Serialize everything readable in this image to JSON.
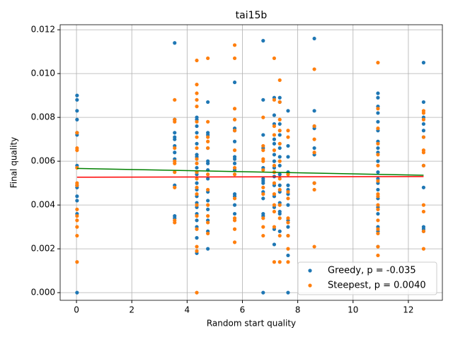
{
  "chart_data": {
    "type": "scatter",
    "title": "tai15b",
    "x_label": "Random start quality",
    "y_label": "Final quality",
    "xlim": [
      -0.59,
      13.23
    ],
    "ylim": [
      -0.00035,
      0.01223
    ],
    "xticks": [
      0,
      2,
      4,
      6,
      8,
      10,
      12
    ],
    "yticks": [
      {
        "value": 0,
        "label": "0.000"
      },
      {
        "value": 0.002,
        "label": "0.002"
      },
      {
        "value": 0.004,
        "label": "0.004"
      },
      {
        "value": 0.006,
        "label": "0.006"
      },
      {
        "value": 0.008,
        "label": "0.008"
      },
      {
        "value": 0.01,
        "label": "0.010"
      },
      {
        "value": 0.012,
        "label": "0.012"
      }
    ],
    "grid": true,
    "legend": "lower right",
    "series": [
      {
        "name": "Greedy, p = -0.035",
        "color": "#1f77b4",
        "x": [
          0.02,
          0.02,
          0.02,
          0.02,
          0.02,
          0.02,
          0.02,
          0.02,
          0.02,
          0.02,
          0.02,
          0.02,
          0.02,
          3.55,
          3.55,
          3.55,
          3.55,
          3.55,
          3.55,
          3.55,
          3.55,
          3.55,
          3.55,
          3.55,
          4.35,
          4.35,
          4.35,
          4.35,
          4.35,
          4.35,
          4.35,
          4.35,
          4.35,
          4.35,
          4.35,
          4.35,
          4.35,
          4.35,
          4.35,
          4.35,
          4.35,
          4.35,
          4.35,
          4.75,
          4.75,
          4.75,
          4.75,
          4.75,
          4.75,
          4.75,
          4.75,
          4.75,
          4.75,
          4.75,
          4.75,
          4.75,
          4.75,
          5.72,
          5.72,
          5.72,
          5.72,
          5.72,
          5.72,
          5.72,
          5.72,
          5.72,
          5.72,
          5.72,
          5.72,
          6.75,
          6.75,
          6.75,
          6.75,
          6.75,
          6.75,
          6.75,
          6.75,
          6.75,
          6.75,
          6.75,
          6.75,
          6.75,
          7.15,
          7.15,
          7.15,
          7.15,
          7.15,
          7.15,
          7.15,
          7.15,
          7.15,
          7.15,
          7.15,
          7.15,
          7.15,
          7.15,
          7.35,
          7.35,
          7.35,
          7.35,
          7.35,
          7.35,
          7.35,
          7.35,
          7.35,
          7.35,
          7.35,
          7.35,
          7.35,
          7.35,
          7.65,
          7.65,
          7.65,
          7.65,
          7.65,
          7.65,
          7.65,
          7.65,
          7.65,
          7.65,
          7.65,
          7.65,
          7.65,
          8.6,
          8.6,
          8.6,
          8.6,
          8.6,
          8.6,
          8.6,
          10.9,
          10.9,
          10.9,
          10.9,
          10.9,
          10.9,
          10.9,
          10.9,
          10.9,
          10.9,
          10.9,
          10.9,
          10.9,
          10.9,
          10.9,
          10.9,
          10.9,
          10.9,
          10.9,
          10.9,
          12.55,
          12.55,
          12.55,
          12.55,
          12.55,
          12.55,
          12.55,
          12.55,
          12.55,
          12.55,
          12.55
        ],
        "y": [
          0.009,
          0.0088,
          0.0083,
          0.0079,
          0.0073,
          0.0072,
          0.0058,
          0.0049,
          0.0048,
          0.0044,
          0.0042,
          0.0036,
          0,
          0.0114,
          0.0079,
          0.0073,
          0.0071,
          0.007,
          0.0067,
          0.0064,
          0.0061,
          0.0049,
          0.0035,
          0.0034,
          0.008,
          0.0079,
          0.0076,
          0.0073,
          0.0068,
          0.0063,
          0.0062,
          0.0057,
          0.0054,
          0.005,
          0.0047,
          0.0044,
          0.0041,
          0.0039,
          0.0036,
          0.0033,
          0.003,
          0.0025,
          0.0018,
          0.0087,
          0.0073,
          0.0072,
          0.0066,
          0.006,
          0.0059,
          0.0056,
          0.0052,
          0.0046,
          0.0042,
          0.0038,
          0.0033,
          0.0028,
          0.002,
          0.0096,
          0.0075,
          0.0074,
          0.0069,
          0.0062,
          0.0061,
          0.0059,
          0.0056,
          0.0045,
          0.0044,
          0.004,
          0.0036,
          0.0115,
          0.0088,
          0.0072,
          0.0066,
          0.0057,
          0.0052,
          0.0051,
          0.005,
          0.0046,
          0.0043,
          0.0036,
          0.0035,
          0,
          0.0089,
          0.0081,
          0.0077,
          0.007,
          0.0068,
          0.0063,
          0.006,
          0.0057,
          0.0053,
          0.0049,
          0.0044,
          0.0039,
          0.0029,
          0.0022,
          0.0089,
          0.0087,
          0.0077,
          0.0072,
          0.0066,
          0.0062,
          0.0058,
          0.0054,
          0.0049,
          0.0046,
          0.0041,
          0.0037,
          0.0036,
          0.0028,
          0.0083,
          0.0067,
          0.0062,
          0.0055,
          0.0049,
          0.0047,
          0.0045,
          0.004,
          0.0033,
          0.003,
          0.0026,
          0.0017,
          0,
          0.0116,
          0.0083,
          0.0076,
          0.0075,
          0.0066,
          0.0063,
          0.005,
          0.0091,
          0.0089,
          0.0085,
          0.0082,
          0.0078,
          0.0074,
          0.0069,
          0.0066,
          0.0064,
          0.006,
          0.0055,
          0.0052,
          0.005,
          0.0047,
          0.0043,
          0.0039,
          0.0036,
          0.003,
          0.0028,
          0.0021,
          0.0105,
          0.0087,
          0.008,
          0.0077,
          0.0074,
          0.0071,
          0.0058,
          0.0048,
          0.003,
          0.0029,
          0.0028
        ]
      },
      {
        "name": "Steepest, p = 0.0040",
        "color": "#ff7f0e",
        "x": [
          0.02,
          0.02,
          0.02,
          0.02,
          0.02,
          0.02,
          0.02,
          0.02,
          0.02,
          0.02,
          0.02,
          0.02,
          3.55,
          3.55,
          3.55,
          3.55,
          3.55,
          3.55,
          3.55,
          3.55,
          3.55,
          3.55,
          4.35,
          4.35,
          4.35,
          4.35,
          4.35,
          4.35,
          4.35,
          4.35,
          4.35,
          4.35,
          4.35,
          4.35,
          4.35,
          4.35,
          4.35,
          4.35,
          4.35,
          4.35,
          4.35,
          4.35,
          4.75,
          4.75,
          4.75,
          4.75,
          4.75,
          4.75,
          4.75,
          4.75,
          4.75,
          4.75,
          4.75,
          5.72,
          5.72,
          5.72,
          5.72,
          5.72,
          5.72,
          5.72,
          5.72,
          5.72,
          5.72,
          5.72,
          5.72,
          5.72,
          6.75,
          6.75,
          6.75,
          6.75,
          6.75,
          6.75,
          6.75,
          6.75,
          6.75,
          6.75,
          6.75,
          7.15,
          7.15,
          7.15,
          7.15,
          7.15,
          7.15,
          7.15,
          7.15,
          7.15,
          7.15,
          7.15,
          7.15,
          7.15,
          7.35,
          7.35,
          7.35,
          7.35,
          7.35,
          7.35,
          7.35,
          7.35,
          7.35,
          7.35,
          7.35,
          7.35,
          7.65,
          7.65,
          7.65,
          7.65,
          7.65,
          7.65,
          7.65,
          7.65,
          7.65,
          7.65,
          8.6,
          8.6,
          8.6,
          8.6,
          8.6,
          8.6,
          8.6,
          10.9,
          10.9,
          10.9,
          10.9,
          10.9,
          10.9,
          10.9,
          10.9,
          10.9,
          10.9,
          10.9,
          10.9,
          10.9,
          10.9,
          10.9,
          10.9,
          12.55,
          12.55,
          12.55,
          12.55,
          12.55,
          12.55,
          12.55,
          12.55,
          12.55,
          12.55,
          12.55
        ],
        "y": [
          0.0073,
          0.0066,
          0.0065,
          0.0057,
          0.005,
          0.0049,
          0.0038,
          0.0035,
          0.0033,
          0.003,
          0.0026,
          0.0014,
          0.0088,
          0.0079,
          0.0078,
          0.0066,
          0.006,
          0.0059,
          0.0055,
          0.0048,
          0.0033,
          0.0032,
          0.0106,
          0.0095,
          0.0091,
          0.0088,
          0.0085,
          0.0078,
          0.0071,
          0.0066,
          0.0061,
          0.0059,
          0.0055,
          0.0052,
          0.0048,
          0.0045,
          0.004,
          0.0035,
          0.0029,
          0.0021,
          0.0019,
          0,
          0.0107,
          0.0078,
          0.0071,
          0.0069,
          0.0066,
          0.0054,
          0.0047,
          0.004,
          0.0035,
          0.0032,
          0.0027,
          0.0113,
          0.0107,
          0.0084,
          0.0079,
          0.0074,
          0.0065,
          0.0057,
          0.0054,
          0.0043,
          0.0034,
          0.0033,
          0.0029,
          0.0023,
          0.008,
          0.0067,
          0.0065,
          0.0061,
          0.006,
          0.0056,
          0.0048,
          0.0045,
          0.0034,
          0.003,
          0.0026,
          0.0107,
          0.0088,
          0.0076,
          0.0072,
          0.0065,
          0.0058,
          0.0055,
          0.005,
          0.0045,
          0.004,
          0.0037,
          0.003,
          0.0014,
          0.0097,
          0.0087,
          0.0079,
          0.0074,
          0.0068,
          0.006,
          0.0052,
          0.0047,
          0.004,
          0.0034,
          0.0026,
          0.0014,
          0.0074,
          0.0071,
          0.0054,
          0.0046,
          0.0043,
          0.0034,
          0.0032,
          0.0026,
          0.002,
          0.0014,
          0.0102,
          0.0076,
          0.007,
          0.0064,
          0.005,
          0.0047,
          0.0021,
          0.0105,
          0.0084,
          0.0075,
          0.0068,
          0.0063,
          0.0058,
          0.0051,
          0.0045,
          0.0044,
          0.004,
          0.0038,
          0.0033,
          0.0029,
          0.0027,
          0.0021,
          0.0017,
          0.0083,
          0.0082,
          0.0079,
          0.0071,
          0.0065,
          0.0064,
          0.0058,
          0.004,
          0.0037,
          0.0028,
          0.002
        ]
      }
    ],
    "fit_lines": [
      {
        "color": "green",
        "x": [
          0.02,
          12.55
        ],
        "y": [
          0.00567,
          0.00536
        ]
      },
      {
        "color": "red",
        "x": [
          0.02,
          12.55
        ],
        "y": [
          0.00527,
          0.0053
        ]
      }
    ]
  }
}
